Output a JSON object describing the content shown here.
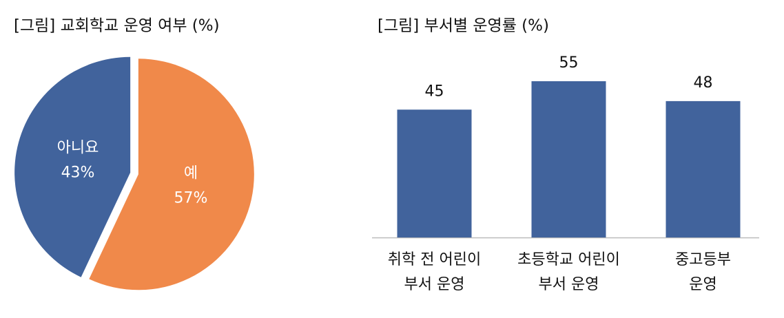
{
  "chart_data": [
    {
      "type": "pie",
      "title": "[그림] 교회학교 운영 여부 (%)",
      "labels": [
        "예",
        "아니요"
      ],
      "values": [
        57,
        43
      ],
      "value_labels": [
        "57%",
        "43%"
      ],
      "colors": [
        "#f0894a",
        "#41639c"
      ]
    },
    {
      "type": "bar",
      "title": "[그림] 부서별 운영률 (%)",
      "categories": [
        "취학 전 어린이\n부서 운영",
        "초등학교 어린이\n부서 운영",
        "중고등부\n운영"
      ],
      "values": [
        45,
        55,
        48
      ],
      "color": "#41639c"
    }
  ]
}
